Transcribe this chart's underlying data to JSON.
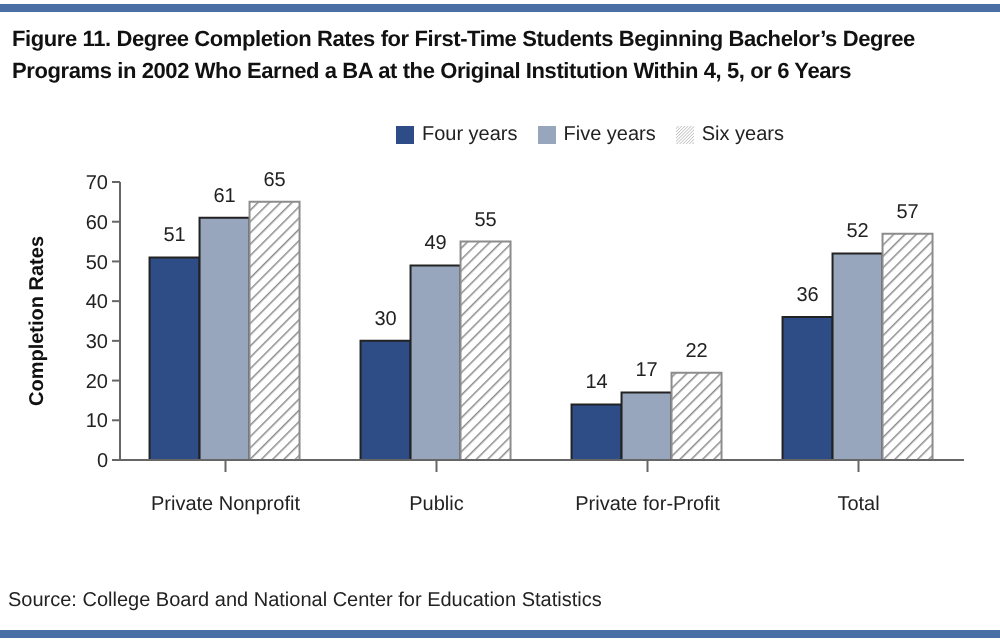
{
  "chart_data": {
    "type": "bar",
    "title": "Figure 11. Degree Completion Rates for First-Time Students Beginning Bachelor’s Degree Programs in 2002 Who Earned a BA at the Original Institution Within 4, 5, or 6 Years",
    "ylabel": "Completion Rates",
    "categories": [
      "Private Nonprofit",
      "Public",
      "Private for-Profit",
      "Total"
    ],
    "series": [
      {
        "name": "Four years",
        "color": "#2e4d86",
        "values": [
          51,
          30,
          14,
          36
        ]
      },
      {
        "name": "Five years",
        "color": "#97a6bd",
        "values": [
          61,
          49,
          17,
          52
        ]
      },
      {
        "name": "Six years",
        "color": "#8c8c8c",
        "values": [
          65,
          55,
          22,
          57
        ]
      }
    ],
    "ylim": [
      0,
      70
    ],
    "yticks": [
      0,
      10,
      20,
      30,
      40,
      50,
      60,
      70
    ],
    "data_labels": true,
    "grid": false,
    "legend": "top",
    "annotations": [
      "Source: College Board and National Center for Education Statistics"
    ]
  }
}
